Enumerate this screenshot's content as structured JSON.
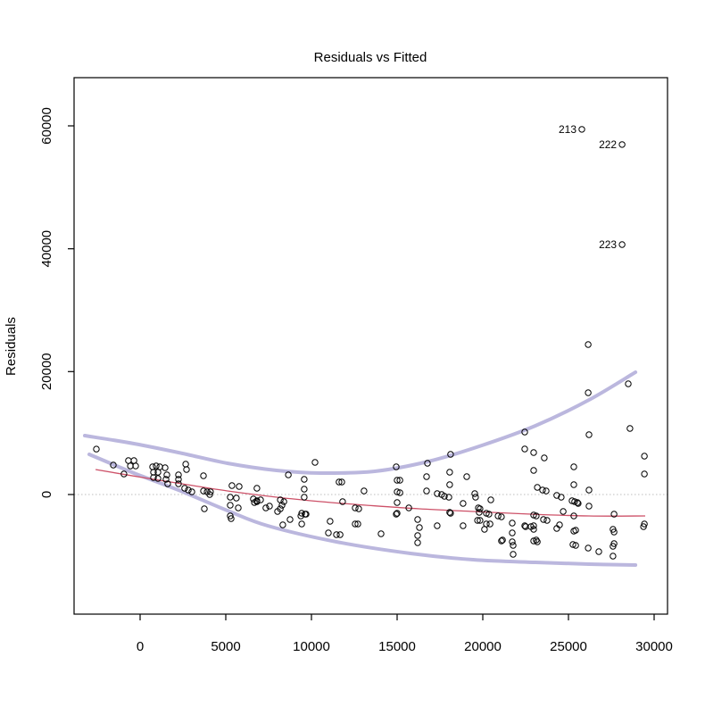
{
  "chart_data": {
    "type": "scatter",
    "title": "Residuals vs Fitted",
    "xlabel": "",
    "ylabel": "Residuals",
    "xlim": [
      -3854,
      30781
    ],
    "ylim": [
      -19468,
      67845
    ],
    "xticks": [
      0,
      5000,
      10000,
      15000,
      20000,
      25000,
      30000
    ],
    "yticks": [
      0,
      20000,
      40000,
      60000
    ],
    "grid": false,
    "legend": "none",
    "colors": {
      "points": "#000000",
      "frame": "#000000",
      "zero_line": "#bdbdbd",
      "smooth_line": "#cd5168",
      "band": "#bbb7de",
      "background": "#ffffff"
    },
    "point_style": {
      "shape": "open-circle",
      "radius": 3.2,
      "stroke_width": 1
    },
    "zero_line": {
      "y": 0,
      "style": "dotted"
    },
    "points": [
      [
        -2550,
        7400
      ],
      [
        -1560,
        4800
      ],
      [
        -940,
        3340
      ],
      [
        -680,
        5520
      ],
      [
        -360,
        5520
      ],
      [
        -570,
        4650
      ],
      [
        -260,
        4650
      ],
      [
        730,
        4500
      ],
      [
        940,
        4650
      ],
      [
        1150,
        4500
      ],
      [
        780,
        3630
      ],
      [
        1040,
        3630
      ],
      [
        780,
        2760
      ],
      [
        1040,
        2620
      ],
      [
        1460,
        4360
      ],
      [
        1560,
        3200
      ],
      [
        1510,
        2470
      ],
      [
        1610,
        1740
      ],
      [
        2240,
        3200
      ],
      [
        2240,
        2470
      ],
      [
        2240,
        1740
      ],
      [
        2660,
        4940
      ],
      [
        2710,
        4070
      ],
      [
        2600,
        1020
      ],
      [
        2810,
        730
      ],
      [
        3020,
        440
      ],
      [
        3700,
        3050
      ],
      [
        3700,
        580
      ],
      [
        3910,
        440
      ],
      [
        4110,
        440
      ],
      [
        4060,
        0
      ],
      [
        3750,
        -2320
      ],
      [
        5260,
        -1740
      ],
      [
        5730,
        -2180
      ],
      [
        5310,
        -3920
      ],
      [
        6670,
        -1310
      ],
      [
        6820,
        -1160
      ],
      [
        7340,
        -2180
      ],
      [
        7550,
        -1890
      ],
      [
        8020,
        -2760
      ],
      [
        10210,
        5230
      ],
      [
        8650,
        3200
      ],
      [
        9580,
        2470
      ],
      [
        9580,
        870
      ],
      [
        11610,
        2030
      ],
      [
        11770,
        2030
      ],
      [
        5360,
        1450
      ],
      [
        5780,
        1310
      ],
      [
        6820,
        1020
      ],
      [
        9580,
        -440
      ],
      [
        13070,
        580
      ],
      [
        5260,
        -440
      ],
      [
        5620,
        -580
      ],
      [
        6610,
        -730
      ],
      [
        6820,
        -1020
      ],
      [
        7030,
        -870
      ],
      [
        8180,
        -870
      ],
      [
        8390,
        -1160
      ],
      [
        8280,
        -1740
      ],
      [
        8180,
        -2330
      ],
      [
        5260,
        -3490
      ],
      [
        8330,
        -4940
      ],
      [
        8750,
        -4070
      ],
      [
        9430,
        -3050
      ],
      [
        9630,
        -3200
      ],
      [
        9430,
        -4800
      ],
      [
        11090,
        -4360
      ],
      [
        12550,
        -2180
      ],
      [
        12760,
        -2330
      ],
      [
        12550,
        -4800
      ],
      [
        12710,
        -4800
      ],
      [
        10990,
        -6250
      ],
      [
        11460,
        -6540
      ],
      [
        11670,
        -6540
      ],
      [
        11820,
        -1160
      ],
      [
        9380,
        -3490
      ],
      [
        9690,
        -3200
      ],
      [
        14060,
        -6390
      ],
      [
        14950,
        -3200
      ],
      [
        16200,
        -4070
      ],
      [
        16300,
        -5380
      ],
      [
        16200,
        -6680
      ],
      [
        16200,
        -7850
      ],
      [
        17340,
        -5090
      ],
      [
        18120,
        -3050
      ],
      [
        18850,
        -5090
      ],
      [
        14950,
        4500
      ],
      [
        16770,
        5090
      ],
      [
        18120,
        6540
      ],
      [
        22450,
        10170
      ],
      [
        22450,
        7410
      ],
      [
        15000,
        2320
      ],
      [
        15160,
        2320
      ],
      [
        16720,
        2910
      ],
      [
        18070,
        3630
      ],
      [
        19060,
        2910
      ],
      [
        15000,
        440
      ],
      [
        15160,
        290
      ],
      [
        16720,
        580
      ],
      [
        17340,
        150
      ],
      [
        17600,
        0
      ],
      [
        17760,
        -290
      ],
      [
        18020,
        -440
      ],
      [
        18070,
        1600
      ],
      [
        19530,
        150
      ],
      [
        19580,
        -440
      ],
      [
        20470,
        -870
      ],
      [
        15000,
        -1310
      ],
      [
        15680,
        -2180
      ],
      [
        15000,
        -3050
      ],
      [
        18070,
        -2910
      ],
      [
        18850,
        -1450
      ],
      [
        19740,
        -2180
      ],
      [
        19840,
        -2330
      ],
      [
        19790,
        -2910
      ],
      [
        20210,
        -3050
      ],
      [
        20360,
        -3200
      ],
      [
        20890,
        -3490
      ],
      [
        21090,
        -3630
      ],
      [
        19690,
        -4210
      ],
      [
        19840,
        -4210
      ],
      [
        20210,
        -4800
      ],
      [
        20420,
        -4800
      ],
      [
        21720,
        -4650
      ],
      [
        21720,
        -6250
      ],
      [
        22450,
        -5090
      ],
      [
        21090,
        -7560
      ],
      [
        21720,
        -7700
      ],
      [
        20100,
        -5670
      ],
      [
        21150,
        -7410
      ],
      [
        21770,
        -8280
      ],
      [
        21770,
        -9730
      ],
      [
        22500,
        -5230
      ],
      [
        22810,
        -5230
      ],
      [
        22970,
        -5670
      ],
      [
        23120,
        -7410
      ],
      [
        24320,
        -5520
      ],
      [
        25420,
        -5810
      ],
      [
        25260,
        -8140
      ],
      [
        25420,
        -8280
      ],
      [
        26150,
        -8720
      ],
      [
        26770,
        -9300
      ],
      [
        27600,
        -5670
      ],
      [
        27600,
        -8430
      ],
      [
        27600,
        -10030
      ],
      [
        29380,
        -5230
      ],
      [
        28590,
        10750
      ],
      [
        26200,
        9740
      ],
      [
        22970,
        6830
      ],
      [
        23590,
        5960
      ],
      [
        29430,
        6250
      ],
      [
        22970,
        3920
      ],
      [
        25310,
        4500
      ],
      [
        29430,
        3340
      ],
      [
        23180,
        1160
      ],
      [
        23490,
        730
      ],
      [
        23700,
        580
      ],
      [
        25310,
        1600
      ],
      [
        26200,
        730
      ],
      [
        24320,
        -150
      ],
      [
        24580,
        -440
      ],
      [
        25210,
        -1020
      ],
      [
        25360,
        -1160
      ],
      [
        25520,
        -1310
      ],
      [
        25570,
        -1450
      ],
      [
        26200,
        -1890
      ],
      [
        24690,
        -2760
      ],
      [
        22970,
        -3340
      ],
      [
        23120,
        -3490
      ],
      [
        23540,
        -4070
      ],
      [
        23750,
        -4210
      ],
      [
        25310,
        -3490
      ],
      [
        27660,
        -3200
      ],
      [
        24480,
        -4940
      ],
      [
        22970,
        -5090
      ],
      [
        25310,
        -5960
      ],
      [
        27660,
        -6100
      ],
      [
        29430,
        -4800
      ],
      [
        22970,
        -7560
      ],
      [
        23180,
        -7700
      ],
      [
        27660,
        -7990
      ],
      [
        26150,
        24410
      ],
      [
        26150,
        16560
      ],
      [
        28490,
        18020
      ]
    ],
    "labeled_points": [
      {
        "label": "213",
        "x": 25780,
        "y": 59430
      },
      {
        "label": "222",
        "x": 28130,
        "y": 56960
      },
      {
        "label": "223",
        "x": 28130,
        "y": 40680
      }
    ],
    "smooth_line": {
      "name": "lowess-smooth",
      "width": 1.3,
      "points": [
        [
          -2600,
          4070
        ],
        [
          160,
          2760
        ],
        [
          2760,
          1600
        ],
        [
          5100,
          580
        ],
        [
          7970,
          -440
        ],
        [
          10570,
          -1160
        ],
        [
          13180,
          -1740
        ],
        [
          16300,
          -2330
        ],
        [
          19430,
          -2760
        ],
        [
          22810,
          -3200
        ],
        [
          26200,
          -3490
        ],
        [
          29480,
          -3490
        ]
      ]
    },
    "bands": [
      {
        "name": "upper-spread-band",
        "width": 4,
        "points": [
          [
            -3230,
            9590
          ],
          [
            -360,
            8280
          ],
          [
            2240,
            6830
          ],
          [
            5100,
            5090
          ],
          [
            7970,
            3920
          ],
          [
            10570,
            3490
          ],
          [
            13700,
            3780
          ],
          [
            16820,
            5380
          ],
          [
            19950,
            7990
          ],
          [
            23070,
            11190
          ],
          [
            26200,
            15400
          ],
          [
            28910,
            19910
          ]
        ]
      },
      {
        "name": "lower-spread-band",
        "width": 4,
        "points": [
          [
            -2970,
            6540
          ],
          [
            -360,
            3490
          ],
          [
            2240,
            730
          ],
          [
            5100,
            -2620
          ],
          [
            7450,
            -5090
          ],
          [
            11460,
            -7700
          ],
          [
            15780,
            -9590
          ],
          [
            19430,
            -10610
          ],
          [
            23070,
            -11040
          ],
          [
            26200,
            -11330
          ],
          [
            28910,
            -11480
          ]
        ]
      }
    ]
  }
}
